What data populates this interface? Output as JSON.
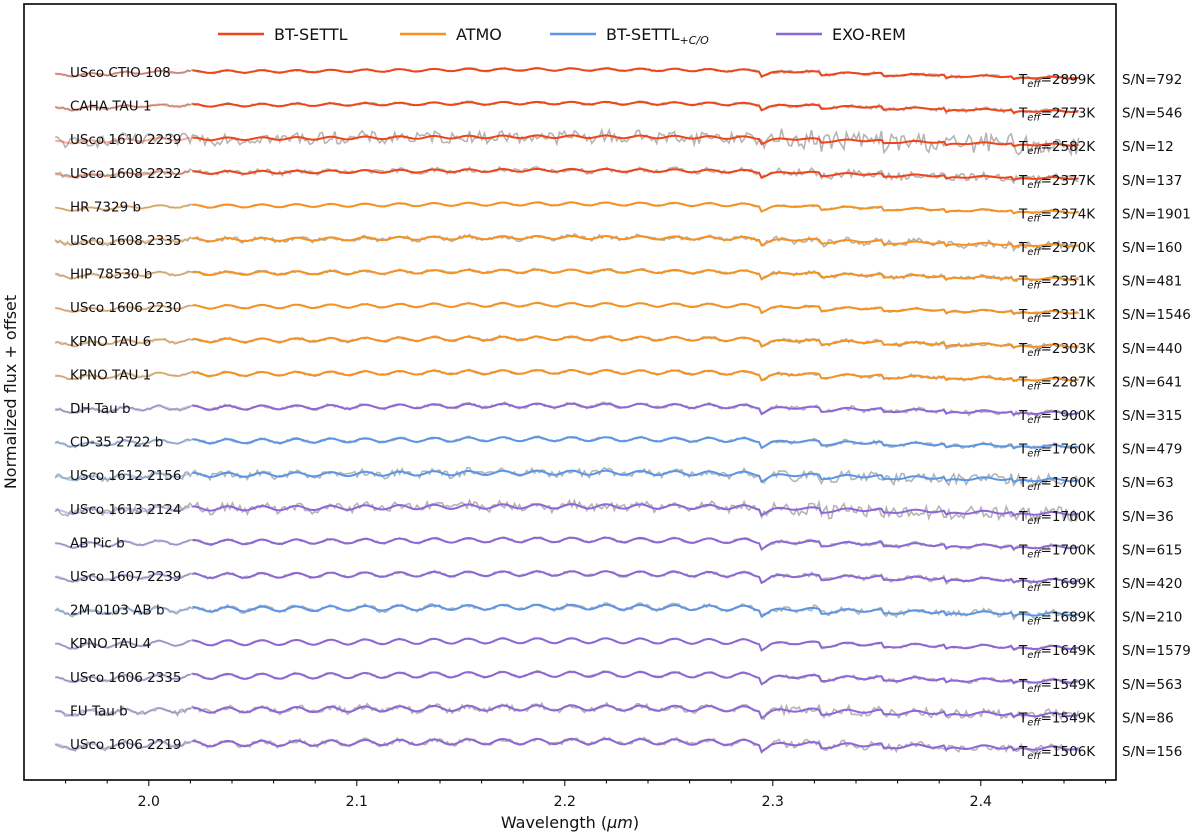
{
  "chart_data": {
    "type": "line",
    "xlabel": "Wavelength (",
    "xlabel_unit": "μm",
    "xlabel_close": ")",
    "ylabel": "Normalized flux + offset",
    "xlim": [
      1.94,
      2.465
    ],
    "x_ticks": [
      2.0,
      2.1,
      2.2,
      2.3,
      2.4
    ],
    "x_tick_labels": [
      "2.0",
      "2.1",
      "2.2",
      "2.3",
      "2.4"
    ],
    "grid": false,
    "legend_position": "top",
    "legend": [
      {
        "key": "btsettl",
        "label": "BT-SETTL",
        "color": "#f0441a"
      },
      {
        "key": "atmo",
        "label": "ATMO",
        "color": "#f6921e"
      },
      {
        "key": "btsettlco",
        "label": "BT-SETTL",
        "sub": "+C/O",
        "color": "#5b95e6"
      },
      {
        "key": "exorem",
        "label": "EXO-REM",
        "color": "#8c67d6"
      }
    ],
    "observed_color": "#b4b4b4",
    "teff_prefix": "T",
    "teff_sub": "eff",
    "spectra": [
      {
        "name": "USco CTIO 108",
        "model": "btsettl",
        "teff": "=2899K",
        "sn": "S/N=792"
      },
      {
        "name": "CAHA TAU 1",
        "model": "btsettl",
        "teff": "=2773K",
        "sn": "S/N=546"
      },
      {
        "name": "USco 1610 2239",
        "model": "btsettl",
        "teff": "=2582K",
        "sn": "S/N=12"
      },
      {
        "name": "USco 1608 2232",
        "model": "btsettl",
        "teff": "=2377K",
        "sn": "S/N=137"
      },
      {
        "name": "HR 7329 b",
        "model": "atmo",
        "teff": "=2374K",
        "sn": "S/N=1901"
      },
      {
        "name": "USco 1608 2335",
        "model": "atmo",
        "teff": "=2370K",
        "sn": "S/N=160"
      },
      {
        "name": "HIP 78530 b",
        "model": "atmo",
        "teff": "=2351K",
        "sn": "S/N=481"
      },
      {
        "name": "USco 1606 2230",
        "model": "atmo",
        "teff": "=2311K",
        "sn": "S/N=1546"
      },
      {
        "name": "KPNO TAU 6",
        "model": "atmo",
        "teff": "=2303K",
        "sn": "S/N=440"
      },
      {
        "name": "KPNO TAU 1",
        "model": "atmo",
        "teff": "=2287K",
        "sn": "S/N=641"
      },
      {
        "name": "DH Tau b",
        "model": "exorem",
        "teff": "=1900K",
        "sn": "S/N=315"
      },
      {
        "name": "CD-35 2722 b",
        "model": "btsettlco",
        "teff": "=1760K",
        "sn": "S/N=479"
      },
      {
        "name": "USco 1612 2156",
        "model": "btsettlco",
        "teff": "=1700K",
        "sn": "S/N=63"
      },
      {
        "name": "USco 1613 2124",
        "model": "exorem",
        "teff": "=1700K",
        "sn": "S/N=36"
      },
      {
        "name": "AB Pic b",
        "model": "exorem",
        "teff": "=1700K",
        "sn": "S/N=615"
      },
      {
        "name": "USco 1607 2239",
        "model": "exorem",
        "teff": "=1699K",
        "sn": "S/N=420"
      },
      {
        "name": "2M 0103 AB b",
        "model": "btsettlco",
        "teff": "=1689K",
        "sn": "S/N=210"
      },
      {
        "name": "KPNO TAU 4",
        "model": "exorem",
        "teff": "=1649K",
        "sn": "S/N=1579"
      },
      {
        "name": "USco 1606 2335",
        "model": "exorem",
        "teff": "=1549K",
        "sn": "S/N=563"
      },
      {
        "name": "FU Tau b",
        "model": "exorem",
        "teff": "=1549K",
        "sn": "S/N=86"
      },
      {
        "name": "USco 1606 2219",
        "model": "exorem",
        "teff": "=1506K",
        "sn": "S/N=156"
      }
    ]
  }
}
